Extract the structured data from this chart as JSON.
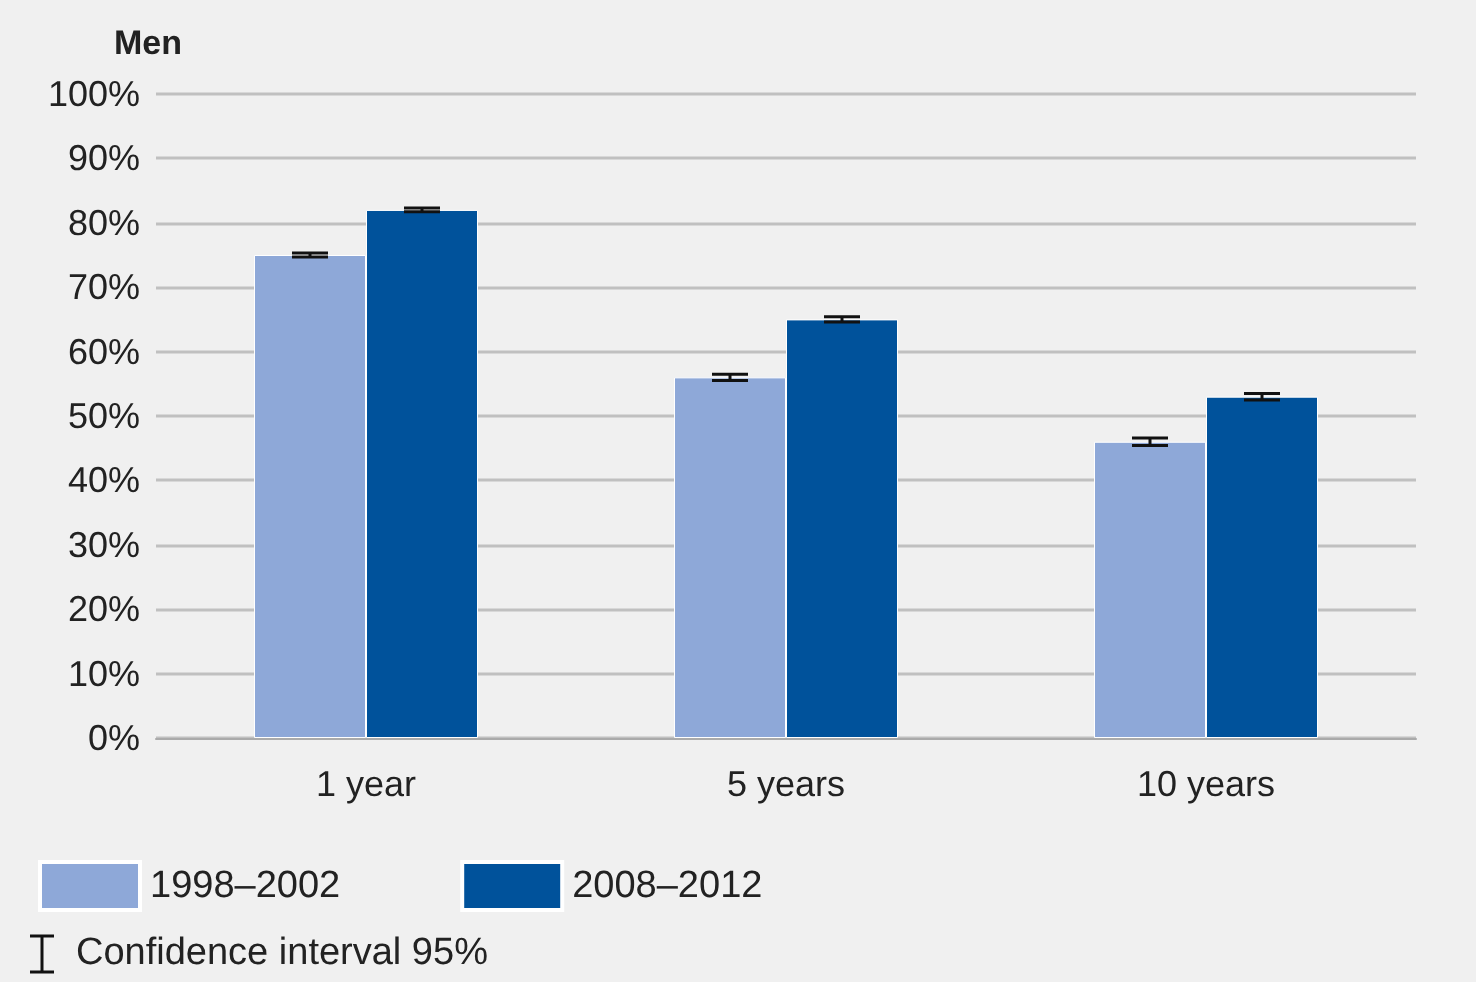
{
  "chart_data": {
    "type": "bar",
    "title": "Men",
    "categories": [
      "1 year",
      "5 years",
      "10 years"
    ],
    "series": [
      {
        "name": "1998–2002",
        "color": "#8ea8d8",
        "values": [
          75,
          56,
          46
        ],
        "errors": [
          0.3,
          0.5,
          0.6
        ]
      },
      {
        "name": "2008–2012",
        "color": "#00529b",
        "values": [
          82,
          65,
          53
        ],
        "errors": [
          0.3,
          0.4,
          0.5
        ]
      }
    ],
    "ylim": [
      0,
      100
    ],
    "yticks": [
      {
        "value": 0,
        "label": "0%"
      },
      {
        "value": 10,
        "label": "10%"
      },
      {
        "value": 20,
        "label": "20%"
      },
      {
        "value": 30,
        "label": "30%"
      },
      {
        "value": 40,
        "label": "40%"
      },
      {
        "value": 50,
        "label": "50%"
      },
      {
        "value": 60,
        "label": "60%"
      },
      {
        "value": 70,
        "label": "70%"
      },
      {
        "value": 80,
        "label": "80%"
      },
      {
        "value": 90,
        "label": "90%"
      },
      {
        "value": 100,
        "label": "100%"
      }
    ],
    "grid": "y",
    "legend": "bottom left",
    "annotations": [
      "Confidence interval 95%"
    ]
  }
}
